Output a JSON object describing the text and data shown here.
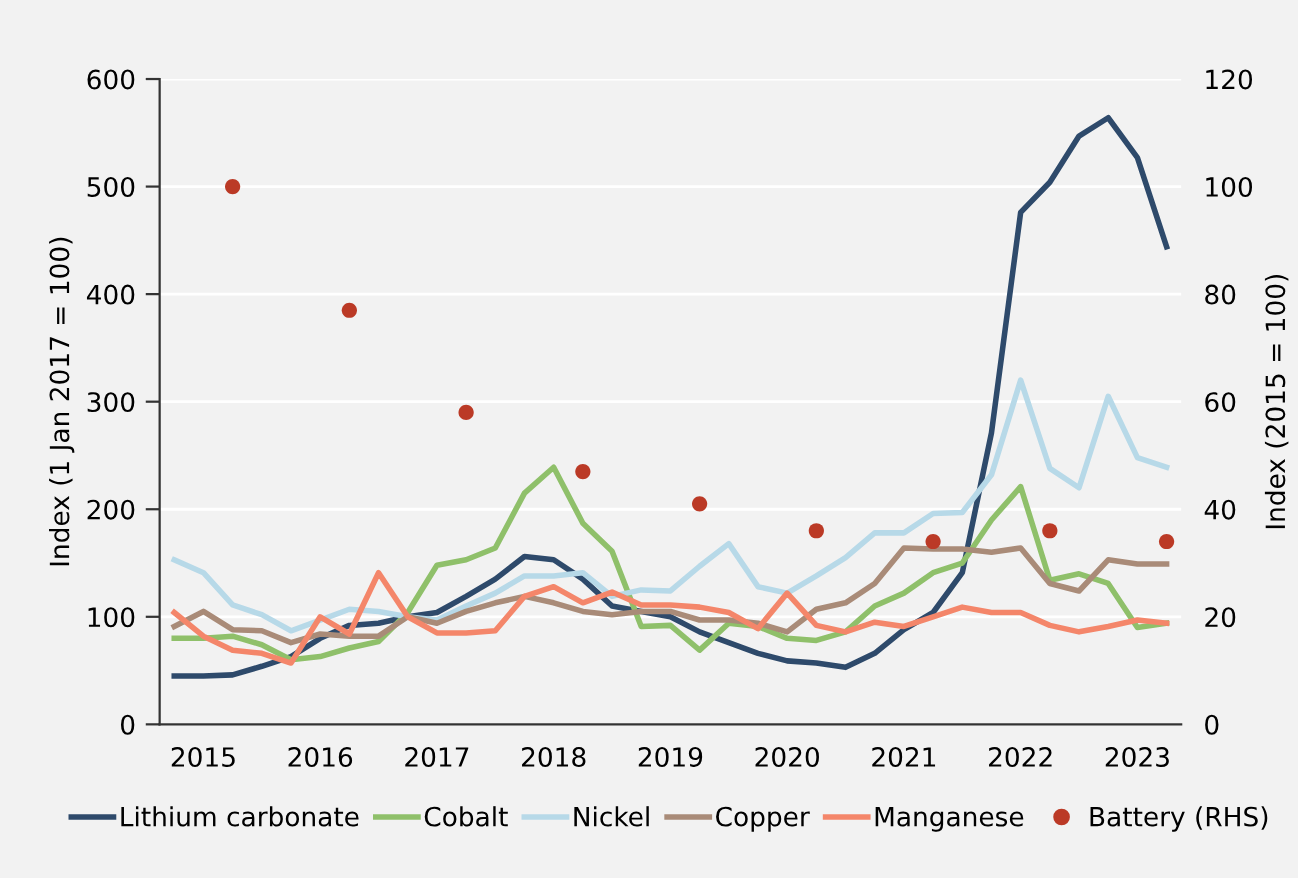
{
  "chart_data": {
    "type": "line",
    "ylabel": "Index (1 Jan 2017 = 100)",
    "y2label": "Index (2015 = 100)",
    "categories": [
      null,
      "2015",
      null,
      null,
      null,
      "2016",
      null,
      null,
      null,
      "2017",
      null,
      null,
      null,
      "2018",
      null,
      null,
      null,
      "2019",
      null,
      null,
      null,
      "2020",
      null,
      null,
      null,
      "2021",
      null,
      null,
      null,
      "2022",
      null,
      null,
      null,
      "2023",
      null
    ],
    "ylim": [
      0,
      600
    ],
    "yticks": [
      0,
      100,
      200,
      300,
      400,
      500,
      600
    ],
    "y2lim": [
      0,
      120
    ],
    "y2ticks": [
      0,
      20,
      40,
      60,
      80,
      100,
      120
    ],
    "grid": "y",
    "legend": "bottom",
    "series": [
      {
        "name": "Lithium carbonate",
        "color": "#2e4a6b",
        "values": [
          45,
          45,
          46,
          54,
          63,
          80,
          92,
          94,
          100,
          104,
          119,
          135,
          156,
          153,
          135,
          110,
          105,
          100,
          86,
          76,
          66,
          59,
          57,
          53,
          66,
          88,
          104,
          141,
          271,
          476,
          504,
          547,
          564,
          527,
          444
        ]
      },
      {
        "name": "Cobalt",
        "color": "#8fc06a",
        "values": [
          80,
          80,
          82,
          74,
          60,
          63,
          71,
          77,
          104,
          148,
          153,
          164,
          215,
          239,
          187,
          161,
          91,
          92,
          69,
          94,
          91,
          80,
          78,
          86,
          110,
          122,
          141,
          150,
          190,
          221,
          134,
          140,
          131,
          90,
          94
        ]
      },
      {
        "name": "Nickel",
        "color": "#b7d9e8",
        "values": [
          153,
          141,
          111,
          102,
          87,
          97,
          107,
          105,
          100,
          97,
          110,
          122,
          138,
          138,
          141,
          119,
          125,
          124,
          147,
          168,
          128,
          122,
          138,
          155,
          178,
          178,
          196,
          197,
          232,
          320,
          238,
          220,
          305,
          248,
          239
        ]
      },
      {
        "name": "Copper",
        "color": "#a98b78",
        "values": [
          91,
          105,
          88,
          87,
          76,
          84,
          82,
          82,
          100,
          94,
          105,
          113,
          119,
          113,
          105,
          102,
          105,
          105,
          97,
          97,
          94,
          86,
          107,
          113,
          131,
          164,
          163,
          163,
          160,
          164,
          131,
          124,
          153,
          149,
          149
        ]
      },
      {
        "name": "Manganese",
        "color": "#f4866a",
        "values": [
          104,
          82,
          69,
          66,
          57,
          100,
          84,
          141,
          100,
          85,
          85,
          87,
          119,
          128,
          113,
          123,
          111,
          111,
          109,
          104,
          89,
          122,
          92,
          86,
          95,
          91,
          100,
          109,
          104,
          104,
          92,
          86,
          91,
          97,
          94
        ]
      },
      {
        "name": "Battery (RHS)",
        "type": "scatter",
        "axis": "y2",
        "marker": "circle",
        "color": "#bb3a26",
        "values": [
          null,
          null,
          100,
          null,
          null,
          null,
          77,
          null,
          null,
          null,
          58,
          null,
          null,
          null,
          47,
          null,
          null,
          null,
          41,
          null,
          null,
          null,
          36,
          null,
          null,
          null,
          34,
          null,
          null,
          null,
          36,
          null,
          null,
          null,
          34
        ]
      }
    ]
  }
}
